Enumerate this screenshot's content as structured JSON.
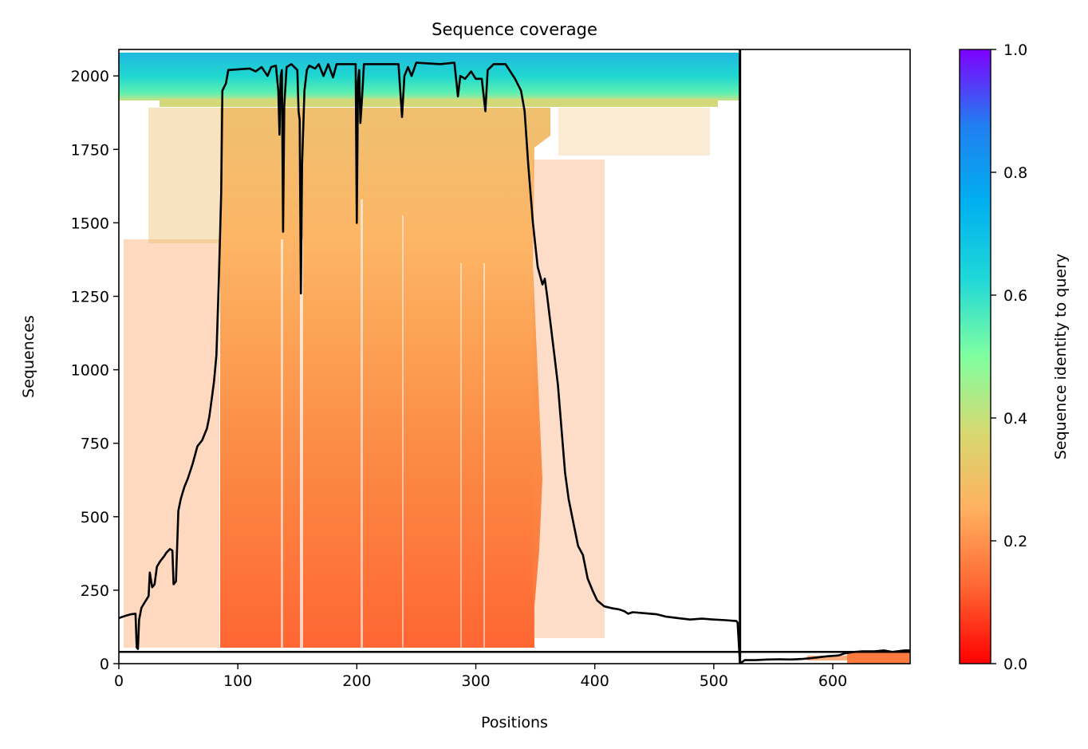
{
  "chart_data": {
    "type": "heatmap",
    "title": "Sequence coverage",
    "xlabel": "Positions",
    "ylabel": "Sequences",
    "xlim": [
      0,
      665
    ],
    "ylim": [
      0,
      2090
    ],
    "xticks": [
      0,
      100,
      200,
      300,
      400,
      500,
      600
    ],
    "yticks": [
      0,
      250,
      500,
      750,
      1000,
      1250,
      1500,
      1750,
      2000
    ],
    "grid": false,
    "colorbar": {
      "label": "Sequence identity to query",
      "range": [
        0,
        1
      ],
      "ticks": [
        "0.0",
        "0.2",
        "0.4",
        "0.6",
        "0.8",
        "1.0"
      ],
      "colormap": "rainbow_r",
      "colors": [
        "#ff0000",
        "#ff6633",
        "#ffb060",
        "#d8d870",
        "#80ffa0",
        "#20d8d8",
        "#00b0f0",
        "#2080f0",
        "#7f00ff"
      ]
    },
    "separators": {
      "vertical_x": 522,
      "horizontal_y": 40
    },
    "coverage_line": {
      "color": "#000000",
      "points": [
        [
          0,
          155
        ],
        [
          5,
          162
        ],
        [
          10,
          168
        ],
        [
          14,
          170
        ],
        [
          15,
          55
        ],
        [
          16,
          50
        ],
        [
          17,
          150
        ],
        [
          19,
          190
        ],
        [
          22,
          210
        ],
        [
          25,
          230
        ],
        [
          26,
          310
        ],
        [
          28,
          260
        ],
        [
          30,
          270
        ],
        [
          32,
          330
        ],
        [
          35,
          350
        ],
        [
          38,
          365
        ],
        [
          40,
          378
        ],
        [
          43,
          390
        ],
        [
          45,
          385
        ],
        [
          46,
          270
        ],
        [
          48,
          280
        ],
        [
          50,
          520
        ],
        [
          52,
          560
        ],
        [
          55,
          600
        ],
        [
          58,
          630
        ],
        [
          62,
          680
        ],
        [
          66,
          740
        ],
        [
          70,
          760
        ],
        [
          74,
          800
        ],
        [
          76,
          840
        ],
        [
          78,
          900
        ],
        [
          80,
          960
        ],
        [
          82,
          1050
        ],
        [
          84,
          1300
        ],
        [
          86,
          1600
        ],
        [
          87,
          1950
        ],
        [
          90,
          1975
        ],
        [
          92,
          2020
        ],
        [
          110,
          2025
        ],
        [
          115,
          2015
        ],
        [
          120,
          2030
        ],
        [
          125,
          2000
        ],
        [
          128,
          2030
        ],
        [
          132,
          2035
        ],
        [
          134,
          1950
        ],
        [
          135,
          1800
        ],
        [
          136,
          2000
        ],
        [
          137,
          2020
        ],
        [
          138,
          1470
        ],
        [
          139,
          1900
        ],
        [
          141,
          2030
        ],
        [
          145,
          2040
        ],
        [
          150,
          2020
        ],
        [
          151,
          1880
        ],
        [
          152,
          1850
        ],
        [
          153,
          1260
        ],
        [
          154,
          1700
        ],
        [
          156,
          1950
        ],
        [
          158,
          2020
        ],
        [
          160,
          2035
        ],
        [
          165,
          2025
        ],
        [
          168,
          2040
        ],
        [
          172,
          2000
        ],
        [
          176,
          2040
        ],
        [
          180,
          1995
        ],
        [
          183,
          2040
        ],
        [
          190,
          2040
        ],
        [
          199,
          2040
        ],
        [
          200,
          1500
        ],
        [
          201,
          1980
        ],
        [
          202,
          2020
        ],
        [
          203,
          1840
        ],
        [
          204,
          1900
        ],
        [
          206,
          2040
        ],
        [
          220,
          2040
        ],
        [
          235,
          2040
        ],
        [
          238,
          1860
        ],
        [
          240,
          2000
        ],
        [
          243,
          2030
        ],
        [
          246,
          2000
        ],
        [
          250,
          2045
        ],
        [
          270,
          2040
        ],
        [
          282,
          2045
        ],
        [
          285,
          1930
        ],
        [
          287,
          2000
        ],
        [
          291,
          1990
        ],
        [
          296,
          2015
        ],
        [
          300,
          1990
        ],
        [
          305,
          1990
        ],
        [
          308,
          1880
        ],
        [
          310,
          2020
        ],
        [
          315,
          2040
        ],
        [
          325,
          2040
        ],
        [
          333,
          1990
        ],
        [
          338,
          1950
        ],
        [
          341,
          1880
        ],
        [
          344,
          1700
        ],
        [
          348,
          1500
        ],
        [
          352,
          1350
        ],
        [
          356,
          1290
        ],
        [
          358,
          1310
        ],
        [
          360,
          1250
        ],
        [
          363,
          1150
        ],
        [
          366,
          1050
        ],
        [
          369,
          950
        ],
        [
          372,
          800
        ],
        [
          375,
          650
        ],
        [
          378,
          560
        ],
        [
          382,
          480
        ],
        [
          386,
          400
        ],
        [
          390,
          370
        ],
        [
          394,
          290
        ],
        [
          398,
          250
        ],
        [
          402,
          215
        ],
        [
          408,
          195
        ],
        [
          415,
          188
        ],
        [
          420,
          185
        ],
        [
          425,
          178
        ],
        [
          428,
          170
        ],
        [
          432,
          175
        ],
        [
          440,
          172
        ],
        [
          452,
          168
        ],
        [
          460,
          160
        ],
        [
          470,
          155
        ],
        [
          480,
          150
        ],
        [
          490,
          153
        ],
        [
          500,
          150
        ],
        [
          510,
          148
        ],
        [
          519,
          145
        ],
        [
          520,
          140
        ],
        [
          522,
          0
        ],
        [
          526,
          12
        ],
        [
          535,
          12
        ],
        [
          545,
          14
        ],
        [
          555,
          15
        ],
        [
          565,
          14
        ],
        [
          575,
          16
        ],
        [
          585,
          20
        ],
        [
          595,
          25
        ],
        [
          605,
          28
        ],
        [
          610,
          35
        ],
        [
          618,
          40
        ],
        [
          625,
          42
        ],
        [
          635,
          42
        ],
        [
          643,
          45
        ],
        [
          650,
          40
        ],
        [
          660,
          45
        ],
        [
          665,
          45
        ]
      ]
    }
  }
}
